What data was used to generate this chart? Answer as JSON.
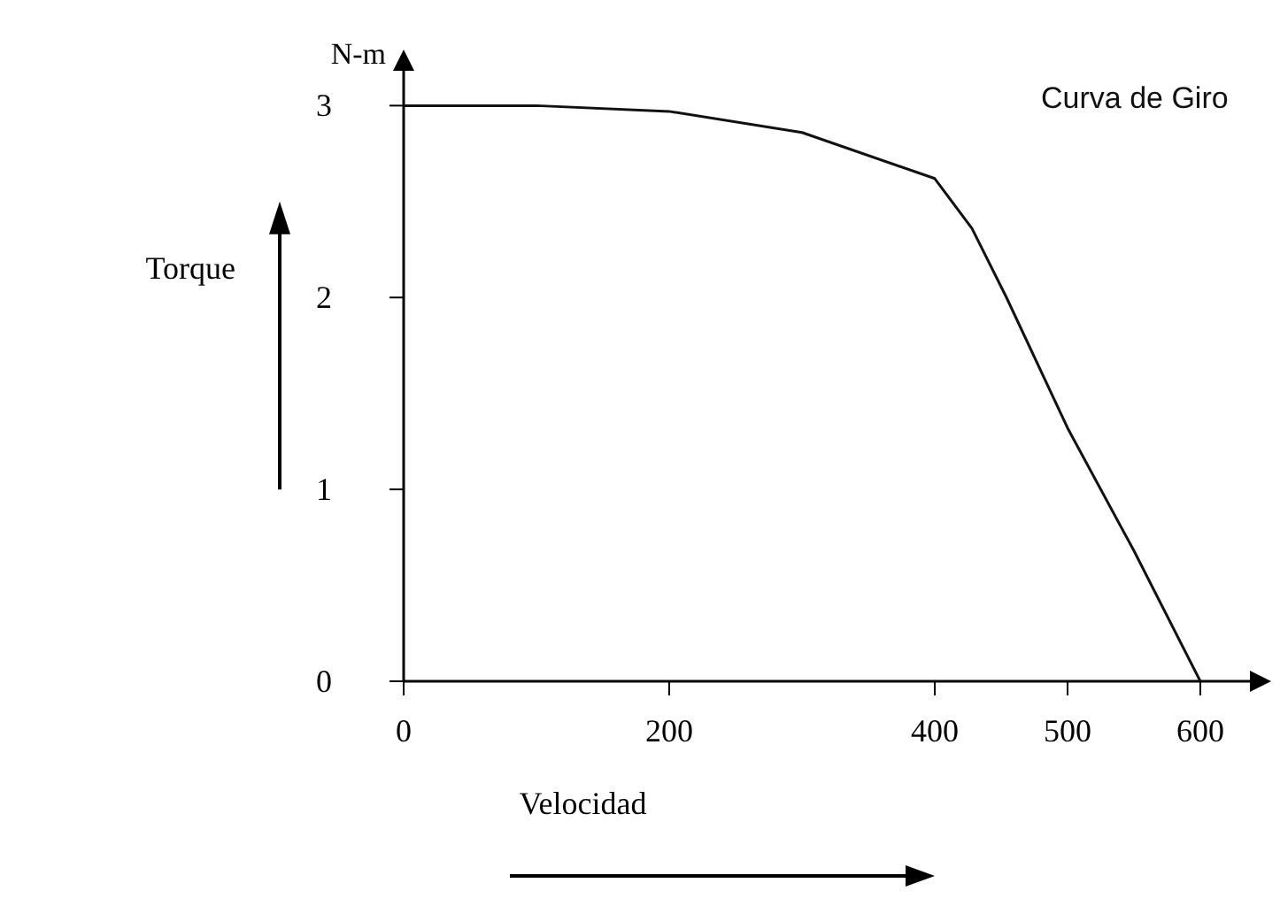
{
  "chart_data": {
    "type": "line",
    "xlabel": "Velocidad",
    "ylabel": "Torque",
    "annotations": [
      "N-m"
    ],
    "x": [
      0,
      100,
      200,
      300,
      400,
      428,
      454,
      500,
      550,
      600
    ],
    "series": [
      {
        "name": "Curva de Giro",
        "color": "#111111",
        "values": [
          3.0,
          3.0,
          2.97,
          2.86,
          2.62,
          2.36,
          2.0,
          1.32,
          0.68,
          0
        ]
      }
    ],
    "xlim": [
      0,
      640
    ],
    "ylim": [
      0,
      3.2
    ],
    "xticks": [
      0,
      200,
      400,
      500,
      600
    ],
    "yticks": [
      0,
      1,
      2,
      3
    ],
    "grid": false,
    "marker": "none",
    "line_style": "solid"
  }
}
